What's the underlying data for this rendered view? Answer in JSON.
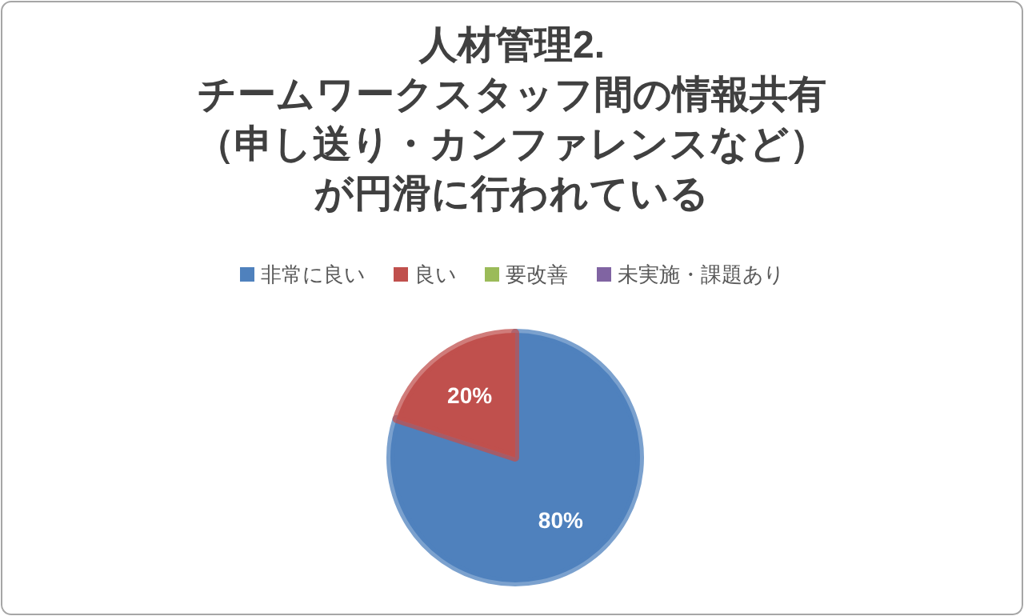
{
  "chart_data": {
    "type": "pie",
    "title": "人材管理2.\nチームワークスタッフ間の情報共有（申し送り・カンファレンスなど）が円滑に行われている",
    "categories": [
      "非常に良い",
      "良い",
      "要改善",
      "未実施・課題あり"
    ],
    "values": [
      80,
      20,
      0,
      0
    ],
    "colors": [
      "#4f81bd",
      "#c0504d",
      "#9bbb59",
      "#8064a2"
    ],
    "value_labels": [
      "80%",
      "20%",
      null,
      null
    ],
    "legend": "top"
  }
}
